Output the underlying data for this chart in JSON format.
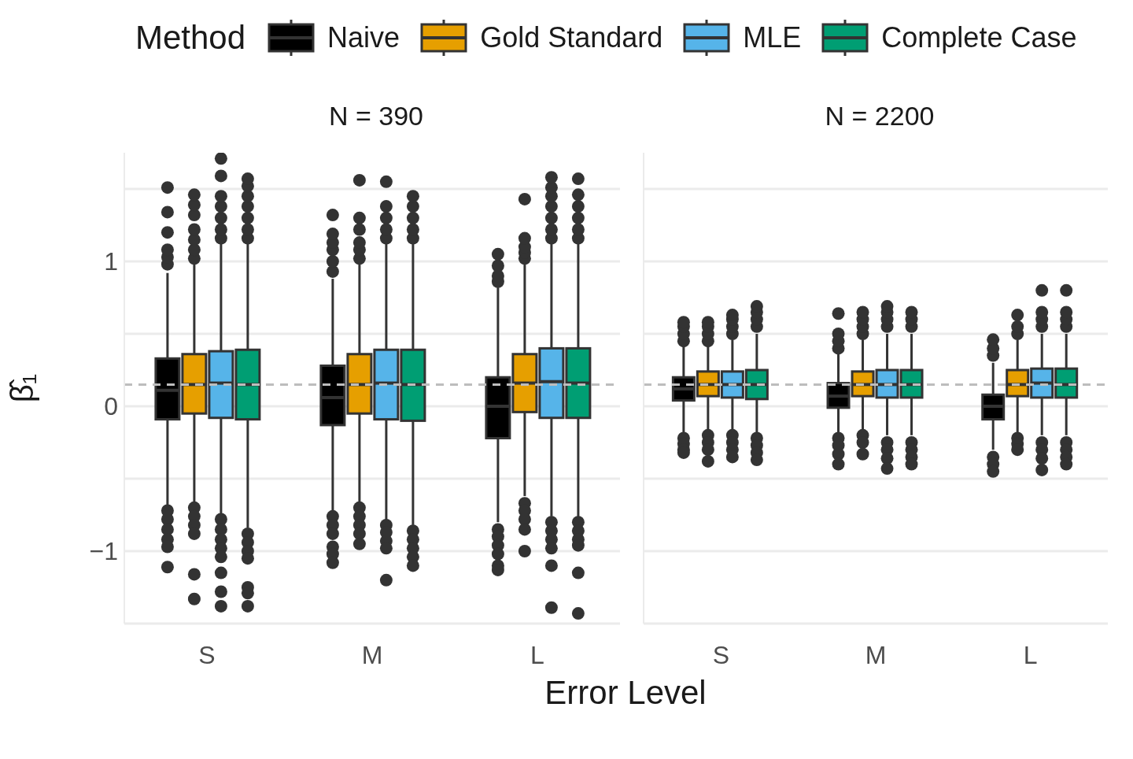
{
  "chart_data": [
    {
      "type": "box",
      "title": "N = 390",
      "xlabel": "Error Level",
      "ylabel": "β̂₁",
      "legend_title": "Method",
      "legend": "top",
      "grid": "y",
      "categories": [
        "S",
        "M",
        "L"
      ],
      "ylim": [
        -1.5,
        1.75
      ],
      "yticks": [
        {
          "value": -1.5,
          "label": null
        },
        {
          "value": -1,
          "label": "−1"
        },
        {
          "value": -0.5,
          "label": null
        },
        0,
        {
          "value": 0.5,
          "label": null
        },
        1,
        {
          "value": 1.5,
          "label": null
        }
      ],
      "ref_lines": [
        {
          "axis": "y",
          "value": 0.15,
          "label": null,
          "color": "#bdbdbd",
          "line_style": "dashed"
        }
      ],
      "series": [
        {
          "name": "Naive",
          "color": "#000000",
          "boxes": [
            {
              "low": -0.68,
              "q1": -0.09,
              "median": 0.11,
              "q3": 0.33,
              "high": 0.92,
              "outliers": [
                0.98,
                1.03,
                1.08,
                1.2,
                1.34,
                1.51,
                -0.72,
                -0.78,
                -0.85,
                -0.92,
                -0.97,
                -1.11
              ]
            },
            {
              "low": -0.72,
              "q1": -0.13,
              "median": 0.06,
              "q3": 0.28,
              "high": 0.88,
              "outliers": [
                0.93,
                1.0,
                1.08,
                1.13,
                1.19,
                1.32,
                -0.76,
                -0.82,
                -0.88,
                -0.97,
                -1.02,
                -1.08
              ]
            },
            {
              "low": -0.8,
              "q1": -0.22,
              "median": 0.0,
              "q3": 0.2,
              "high": 0.82,
              "outliers": [
                0.86,
                0.9,
                0.97,
                1.05,
                -0.85,
                -0.9,
                -0.96,
                -1.02,
                -1.1,
                -1.13
              ]
            }
          ]
        },
        {
          "name": "Gold Standard",
          "color": "#e69f00",
          "boxes": [
            {
              "low": -0.66,
              "q1": -0.05,
              "median": 0.15,
              "q3": 0.36,
              "high": 0.98,
              "outliers": [
                1.02,
                1.08,
                1.15,
                1.22,
                1.32,
                1.39,
                1.46,
                -0.7,
                -0.76,
                -0.82,
                -0.88,
                -1.16,
                -1.33
              ]
            },
            {
              "low": -0.66,
              "q1": -0.05,
              "median": 0.15,
              "q3": 0.36,
              "high": 0.98,
              "outliers": [
                1.02,
                1.08,
                1.13,
                1.22,
                1.3,
                1.56,
                -0.7,
                -0.76,
                -0.82,
                -0.88,
                -0.95
              ]
            },
            {
              "low": -0.62,
              "q1": -0.04,
              "median": 0.16,
              "q3": 0.36,
              "high": 0.98,
              "outliers": [
                1.02,
                1.06,
                1.1,
                1.16,
                1.43,
                -0.67,
                -0.72,
                -0.78,
                -0.85,
                -1.0
              ]
            }
          ]
        },
        {
          "name": "MLE",
          "color": "#56b4e9",
          "boxes": [
            {
              "low": -0.74,
              "q1": -0.08,
              "median": 0.16,
              "q3": 0.38,
              "high": 1.12,
              "outliers": [
                1.16,
                1.22,
                1.3,
                1.38,
                1.45,
                1.59,
                1.71,
                -0.78,
                -0.85,
                -0.92,
                -0.98,
                -1.04,
                -1.15,
                -1.28,
                -1.38
              ]
            },
            {
              "low": -0.8,
              "q1": -0.09,
              "median": 0.16,
              "q3": 0.39,
              "high": 1.12,
              "outliers": [
                1.16,
                1.22,
                1.3,
                1.38,
                1.55,
                -0.82,
                -0.87,
                -0.93,
                -0.98,
                -1.2
              ]
            },
            {
              "low": -0.76,
              "q1": -0.08,
              "median": 0.17,
              "q3": 0.4,
              "high": 1.12,
              "outliers": [
                1.16,
                1.22,
                1.3,
                1.38,
                1.45,
                1.51,
                1.58,
                -0.8,
                -0.86,
                -0.92,
                -0.98,
                -1.1,
                -1.39
              ]
            }
          ]
        },
        {
          "name": "Complete Case",
          "color": "#009e73",
          "boxes": [
            {
              "low": -0.84,
              "q1": -0.09,
              "median": 0.15,
              "q3": 0.39,
              "high": 1.12,
              "outliers": [
                1.16,
                1.22,
                1.3,
                1.38,
                1.45,
                1.52,
                1.57,
                -0.88,
                -0.94,
                -1.0,
                -1.05,
                -1.25,
                -1.29,
                -1.38
              ]
            },
            {
              "low": -0.82,
              "q1": -0.1,
              "median": 0.15,
              "q3": 0.39,
              "high": 1.12,
              "outliers": [
                1.16,
                1.22,
                1.3,
                1.38,
                1.45,
                -0.86,
                -0.92,
                -0.98,
                -1.04,
                -1.1
              ]
            },
            {
              "low": -0.78,
              "q1": -0.08,
              "median": 0.16,
              "q3": 0.4,
              "high": 1.12,
              "outliers": [
                1.16,
                1.22,
                1.3,
                1.38,
                1.46,
                1.57,
                -0.8,
                -0.86,
                -0.92,
                -0.96,
                -1.15,
                -1.43
              ]
            }
          ]
        }
      ]
    },
    {
      "type": "box",
      "title": "N = 2200",
      "grid": "y",
      "tick_labels": "x",
      "categories": [
        "S",
        "M",
        "L"
      ],
      "ylim": [
        -1.5,
        1.75
      ],
      "yticks": [
        {
          "value": -1.5,
          "label": null
        },
        {
          "value": -1,
          "label": null
        },
        {
          "value": -0.5,
          "label": null
        },
        {
          "value": 0,
          "label": null
        },
        {
          "value": 0.5,
          "label": null
        },
        {
          "value": 1,
          "label": null
        },
        {
          "value": 1.5,
          "label": null
        }
      ],
      "ref_lines": [
        {
          "axis": "y",
          "value": 0.15,
          "label": null,
          "color": "#bdbdbd",
          "line_style": "dashed"
        }
      ],
      "series": [
        {
          "color": "#000000",
          "boxes": [
            {
              "low": -0.18,
              "q1": 0.04,
              "median": 0.12,
              "q3": 0.2,
              "high": 0.42,
              "outliers": [
                0.45,
                0.5,
                0.55,
                0.58,
                -0.22,
                -0.26,
                -0.3,
                -0.32
              ]
            },
            {
              "low": -0.18,
              "q1": -0.01,
              "median": 0.07,
              "q3": 0.16,
              "high": 0.36,
              "outliers": [
                0.4,
                0.45,
                0.5,
                0.64,
                -0.22,
                -0.27,
                -0.33,
                -0.4
              ]
            },
            {
              "low": -0.3,
              "q1": -0.09,
              "median": 0.0,
              "q3": 0.08,
              "high": 0.3,
              "outliers": [
                0.35,
                0.4,
                0.46,
                -0.35,
                -0.4,
                -0.45
              ]
            }
          ]
        },
        {
          "color": "#e69f00",
          "boxes": [
            {
              "low": -0.18,
              "q1": 0.07,
              "median": 0.15,
              "q3": 0.24,
              "high": 0.42,
              "outliers": [
                0.45,
                0.5,
                0.55,
                0.58,
                -0.2,
                -0.25,
                -0.3,
                -0.38
              ]
            },
            {
              "low": -0.16,
              "q1": 0.07,
              "median": 0.15,
              "q3": 0.24,
              "high": 0.46,
              "outliers": [
                0.5,
                0.55,
                0.6,
                0.65,
                -0.2,
                -0.25,
                -0.33
              ]
            },
            {
              "low": -0.18,
              "q1": 0.07,
              "median": 0.15,
              "q3": 0.25,
              "high": 0.46,
              "outliers": [
                0.5,
                0.55,
                0.63,
                -0.22,
                -0.26,
                -0.3
              ]
            }
          ]
        },
        {
          "color": "#56b4e9",
          "boxes": [
            {
              "low": -0.18,
              "q1": 0.06,
              "median": 0.15,
              "q3": 0.24,
              "high": 0.46,
              "outliers": [
                0.5,
                0.55,
                0.6,
                0.63,
                -0.2,
                -0.25,
                -0.3,
                -0.35
              ]
            },
            {
              "low": -0.2,
              "q1": 0.06,
              "median": 0.15,
              "q3": 0.25,
              "high": 0.5,
              "outliers": [
                0.55,
                0.6,
                0.65,
                0.69,
                -0.25,
                -0.3,
                -0.36,
                -0.43
              ]
            },
            {
              "low": -0.2,
              "q1": 0.06,
              "median": 0.16,
              "q3": 0.26,
              "high": 0.5,
              "outliers": [
                0.55,
                0.6,
                0.65,
                0.8,
                -0.25,
                -0.3,
                -0.36,
                -0.44
              ]
            }
          ]
        },
        {
          "color": "#009e73",
          "boxes": [
            {
              "low": -0.18,
              "q1": 0.05,
              "median": 0.15,
              "q3": 0.25,
              "high": 0.5,
              "outliers": [
                0.55,
                0.6,
                0.65,
                0.69,
                -0.22,
                -0.27,
                -0.32,
                -0.37
              ]
            },
            {
              "low": -0.2,
              "q1": 0.06,
              "median": 0.15,
              "q3": 0.25,
              "high": 0.5,
              "outliers": [
                0.55,
                0.6,
                0.65,
                -0.25,
                -0.3,
                -0.35,
                -0.4
              ]
            },
            {
              "low": -0.2,
              "q1": 0.06,
              "median": 0.15,
              "q3": 0.26,
              "high": 0.5,
              "outliers": [
                0.55,
                0.6,
                0.65,
                0.8,
                -0.25,
                -0.3,
                -0.35,
                -0.4
              ]
            }
          ]
        }
      ]
    }
  ]
}
